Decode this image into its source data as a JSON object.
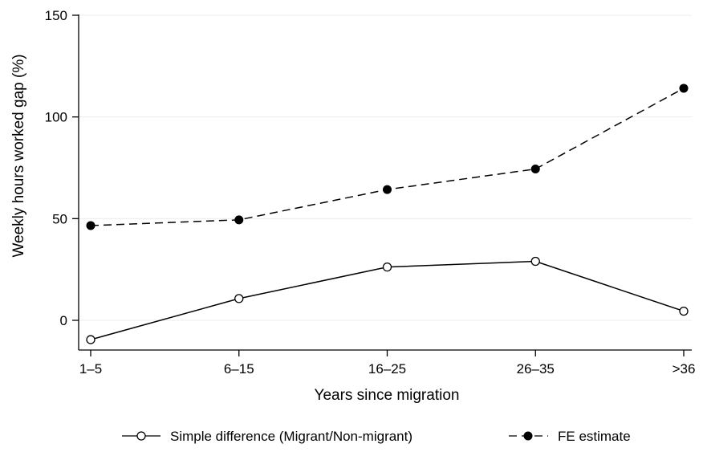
{
  "chart_data": {
    "type": "line",
    "title": "",
    "xlabel": "Years since migration",
    "ylabel": "Weekly hours worked gap (%)",
    "categories": [
      "1–5",
      "6–15",
      "16–25",
      "26–35",
      ">36"
    ],
    "ylim": [
      -10,
      150
    ],
    "yticks": [
      0,
      50,
      100,
      150
    ],
    "grid": true,
    "legend_position": "bottom",
    "series": [
      {
        "name": "Simple difference (Migrant/Non-migrant)",
        "values": [
          -9.5,
          10.7,
          26.2,
          29,
          4.5
        ],
        "line_style": "solid",
        "marker": "hollow-circle",
        "color": "#000000"
      },
      {
        "name": "FE estimate",
        "values": [
          46.6,
          49.4,
          64.3,
          74.4,
          114.1
        ],
        "line_style": "dashed",
        "marker": "filled-circle",
        "color": "#000000"
      }
    ]
  }
}
